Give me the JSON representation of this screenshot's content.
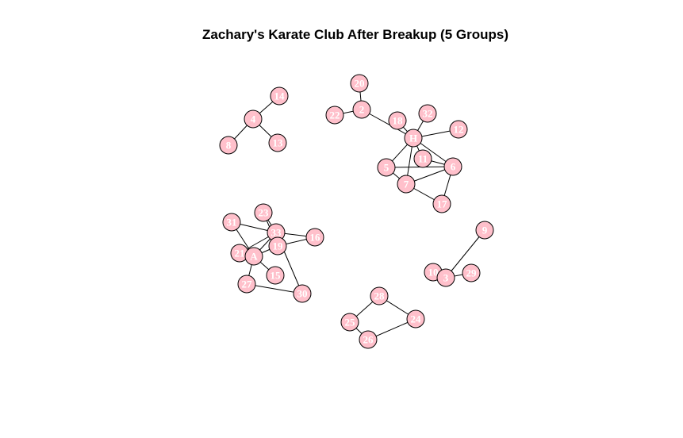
{
  "title": "Zachary's Karate Club After Breakup (5 Groups)",
  "colors": {
    "node_fill": "#ffc0cb",
    "node_stroke": "#000000",
    "label": "#ffffff",
    "edge": "#000000"
  },
  "graph": {
    "nodes": [
      {
        "id": "14",
        "label": "14"
      },
      {
        "id": "4",
        "label": "4"
      },
      {
        "id": "8",
        "label": "8"
      },
      {
        "id": "13",
        "label": "13"
      },
      {
        "id": "20",
        "label": "20"
      },
      {
        "id": "2",
        "label": "2"
      },
      {
        "id": "22",
        "label": "22"
      },
      {
        "id": "18",
        "label": "18"
      },
      {
        "id": "32",
        "label": "32"
      },
      {
        "id": "12",
        "label": "12"
      },
      {
        "id": "H",
        "label": "H"
      },
      {
        "id": "11",
        "label": "11"
      },
      {
        "id": "5",
        "label": "5"
      },
      {
        "id": "6",
        "label": "6"
      },
      {
        "id": "7",
        "label": "7"
      },
      {
        "id": "17",
        "label": "17"
      },
      {
        "id": "31",
        "label": "31"
      },
      {
        "id": "23",
        "label": "23"
      },
      {
        "id": "33",
        "label": "33"
      },
      {
        "id": "16",
        "label": "16"
      },
      {
        "id": "19",
        "label": "19"
      },
      {
        "id": "21",
        "label": "21"
      },
      {
        "id": "A",
        "label": "A"
      },
      {
        "id": "15",
        "label": "15"
      },
      {
        "id": "27",
        "label": "27"
      },
      {
        "id": "30",
        "label": "30"
      },
      {
        "id": "9",
        "label": "9"
      },
      {
        "id": "10",
        "label": "10"
      },
      {
        "id": "3",
        "label": "3"
      },
      {
        "id": "29",
        "label": "29"
      },
      {
        "id": "28",
        "label": "28"
      },
      {
        "id": "24",
        "label": "24"
      },
      {
        "id": "25",
        "label": "25"
      },
      {
        "id": "26",
        "label": "26"
      }
    ],
    "edges": [
      [
        "4",
        "14"
      ],
      [
        "4",
        "8"
      ],
      [
        "4",
        "13"
      ],
      [
        "20",
        "2"
      ],
      [
        "2",
        "22"
      ],
      [
        "2",
        "H"
      ],
      [
        "18",
        "H"
      ],
      [
        "32",
        "H"
      ],
      [
        "12",
        "H"
      ],
      [
        "H",
        "11"
      ],
      [
        "H",
        "5"
      ],
      [
        "H",
        "6"
      ],
      [
        "H",
        "7"
      ],
      [
        "11",
        "6"
      ],
      [
        "5",
        "6"
      ],
      [
        "5",
        "7"
      ],
      [
        "7",
        "6"
      ],
      [
        "7",
        "17"
      ],
      [
        "6",
        "17"
      ],
      [
        "31",
        "33"
      ],
      [
        "31",
        "A"
      ],
      [
        "23",
        "33"
      ],
      [
        "23",
        "19"
      ],
      [
        "33",
        "16"
      ],
      [
        "33",
        "21"
      ],
      [
        "33",
        "A"
      ],
      [
        "33",
        "30"
      ],
      [
        "33",
        "19"
      ],
      [
        "19",
        "16"
      ],
      [
        "19",
        "A"
      ],
      [
        "21",
        "A"
      ],
      [
        "A",
        "15"
      ],
      [
        "A",
        "27"
      ],
      [
        "27",
        "30"
      ],
      [
        "9",
        "3"
      ],
      [
        "10",
        "3"
      ],
      [
        "3",
        "29"
      ],
      [
        "28",
        "25"
      ],
      [
        "28",
        "24"
      ],
      [
        "25",
        "26"
      ],
      [
        "26",
        "24"
      ]
    ]
  }
}
